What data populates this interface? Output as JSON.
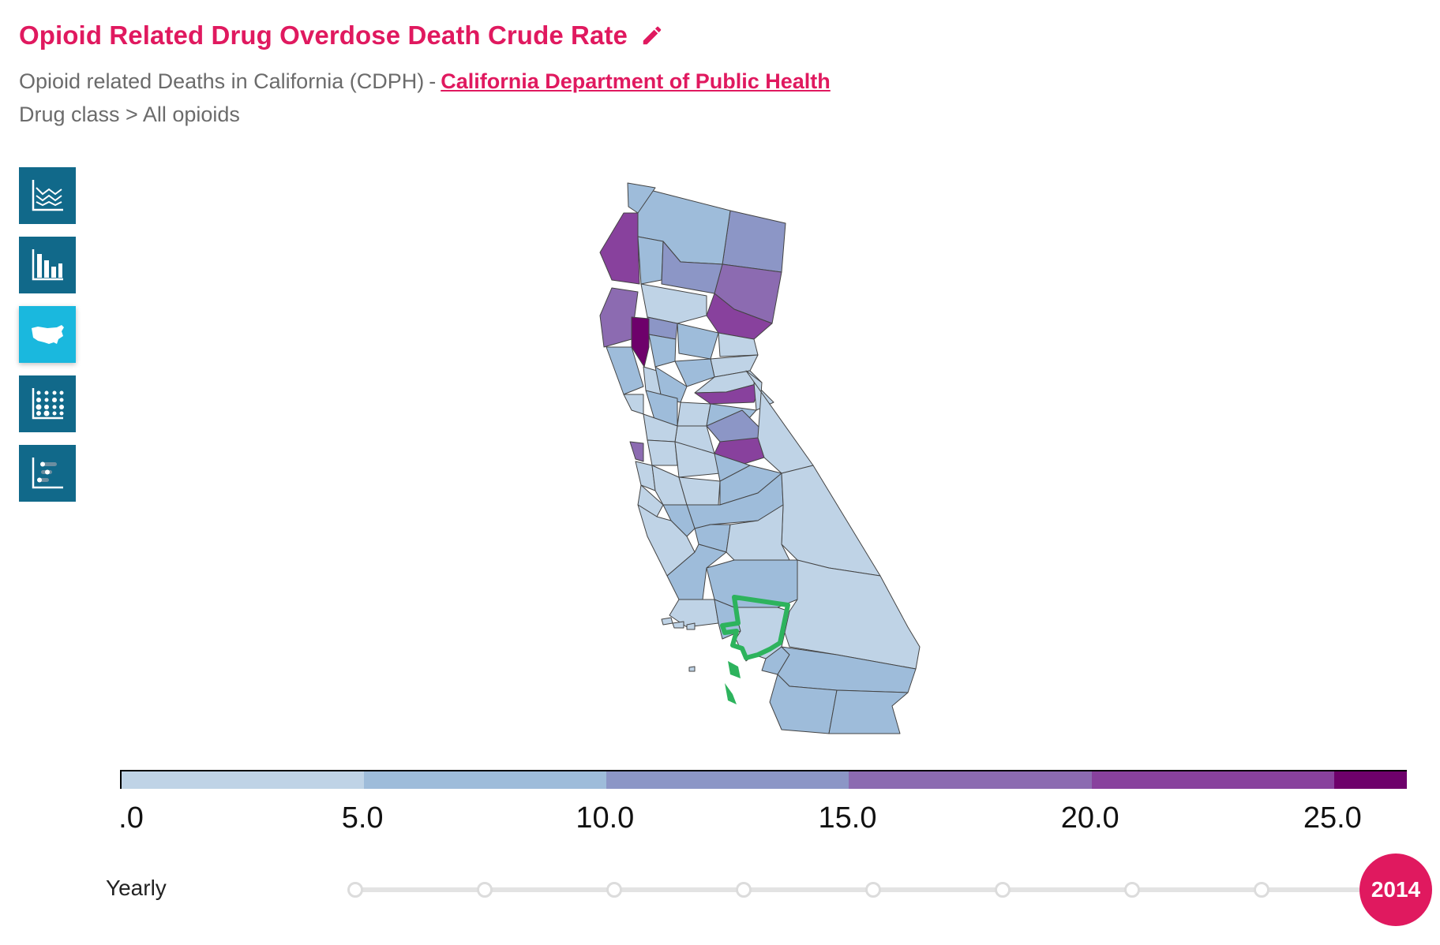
{
  "header": {
    "title": "Opioid Related Drug Overdose Death Crude Rate",
    "subtitle_prefix": "Opioid related Deaths in California (CDPH)",
    "subtitle_sep": "-",
    "source_link": "California Department of Public Health",
    "filter": "Drug class > All opioids"
  },
  "toolbar": {
    "items": [
      {
        "icon": "line-chart-icon",
        "active": false
      },
      {
        "icon": "bar-chart-icon",
        "active": false
      },
      {
        "icon": "us-map-icon",
        "active": true
      },
      {
        "icon": "dot-matrix-icon",
        "active": false
      },
      {
        "icon": "bubble-rank-icon",
        "active": false
      }
    ]
  },
  "legend": {
    "colors": [
      "#bfd3e6",
      "#9ebcda",
      "#8c96c6",
      "#8c6bb1",
      "#88419d",
      "#6e016b"
    ],
    "breaks": [
      ".0",
      "5.0",
      "10.0",
      "15.0",
      "20.0",
      "25.0"
    ],
    "max": 26.5
  },
  "timeline": {
    "period": "Yearly",
    "selected_year": "2014",
    "dot_count": 8
  },
  "map": {
    "selected_county_color": "#2db35d"
  }
}
